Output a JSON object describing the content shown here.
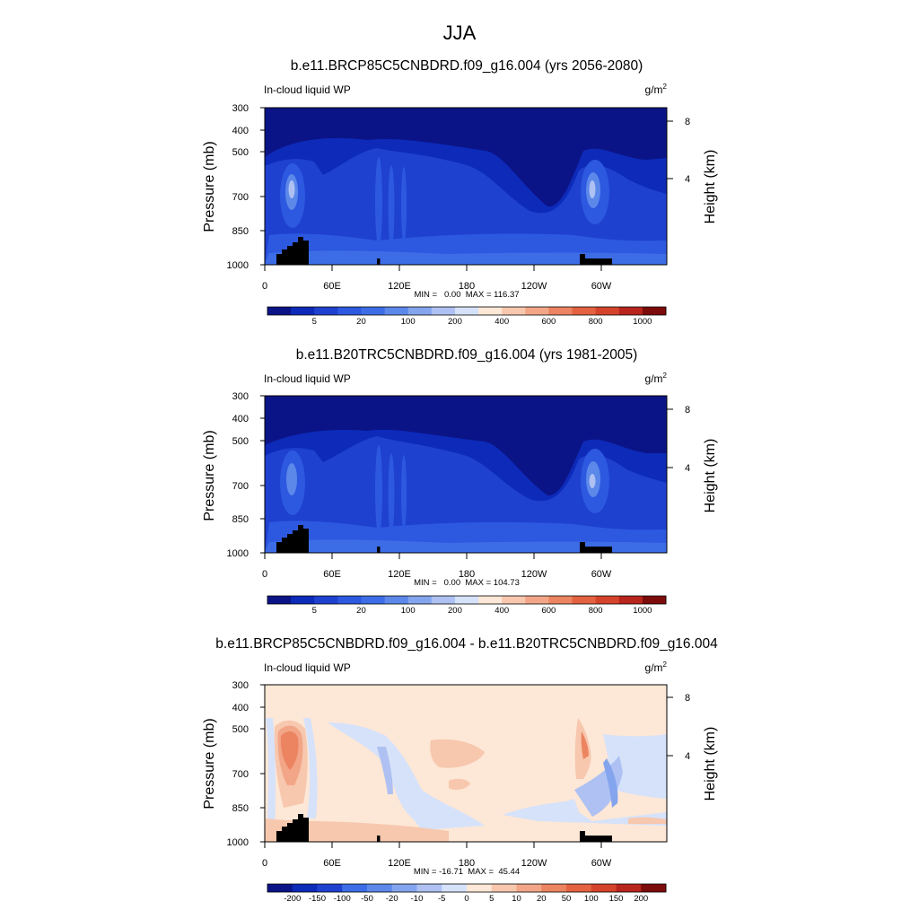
{
  "figure": {
    "title": "JJA"
  },
  "chart_data": [
    {
      "type": "heatmap",
      "title": "b.e11.BRCP85C5CNBDRD.f09_g16.004 (yrs 2056-2080)",
      "field_label": "In-cloud liquid WP",
      "units_base": "g/m",
      "units_exp": "2",
      "ylabel": "Pressure (mb)",
      "ylabel_right": "Height (km)",
      "x_ticks": [
        "0",
        "60E",
        "120E",
        "180",
        "120W",
        "60W"
      ],
      "x_tick_lons": [
        0,
        60,
        120,
        180,
        240,
        300
      ],
      "xlim": [
        0,
        360
      ],
      "y_ticks": [
        "300",
        "400",
        "500",
        "700",
        "850",
        "1000"
      ],
      "y_tick_values": [
        300,
        400,
        500,
        700,
        850,
        1000
      ],
      "ylim": [
        300,
        1000
      ],
      "right_ticks": [
        "8",
        "4"
      ],
      "right_tick_values": [
        8,
        4
      ],
      "stats": "MIN =   0.00  MAX = 116.37",
      "colorbar_labels": [
        "5",
        "20",
        "100",
        "200",
        "400",
        "600",
        "800",
        "1000"
      ],
      "colorbar_levels": [
        "2",
        "5",
        "10",
        "20",
        "50",
        "100",
        "150",
        "200",
        "300",
        "400",
        "500",
        "600",
        "700",
        "800",
        "900",
        "1000"
      ],
      "colorbar_colors": [
        "#0b1487",
        "#0d2ab9",
        "#1e41cf",
        "#2d58e0",
        "#3d6de6",
        "#5c88ea",
        "#84a5ee",
        "#aec1f2",
        "#d6e2fa",
        "#fde7d6",
        "#f7c7ae",
        "#f2a687",
        "#ec8461",
        "#e4623f",
        "#d6432b",
        "#b8251d",
        "#7c0b0b"
      ]
    },
    {
      "type": "heatmap",
      "title": "b.e11.B20TRC5CNBDRD.f09_g16.004 (yrs 1981-2005)",
      "field_label": "In-cloud liquid WP",
      "units_base": "g/m",
      "units_exp": "2",
      "ylabel": "Pressure (mb)",
      "ylabel_right": "Height (km)",
      "x_ticks": [
        "0",
        "60E",
        "120E",
        "180",
        "120W",
        "60W"
      ],
      "x_tick_lons": [
        0,
        60,
        120,
        180,
        240,
        300
      ],
      "xlim": [
        0,
        360
      ],
      "y_ticks": [
        "300",
        "400",
        "500",
        "700",
        "850",
        "1000"
      ],
      "y_tick_values": [
        300,
        400,
        500,
        700,
        850,
        1000
      ],
      "ylim": [
        300,
        1000
      ],
      "right_ticks": [
        "8",
        "4"
      ],
      "right_tick_values": [
        8,
        4
      ],
      "stats": "MIN =   0.00  MAX = 104.73",
      "colorbar_labels": [
        "5",
        "20",
        "100",
        "200",
        "400",
        "600",
        "800",
        "1000"
      ],
      "colorbar_levels": [
        "2",
        "5",
        "10",
        "20",
        "50",
        "100",
        "150",
        "200",
        "300",
        "400",
        "500",
        "600",
        "700",
        "800",
        "900",
        "1000"
      ],
      "colorbar_colors": [
        "#0b1487",
        "#0d2ab9",
        "#1e41cf",
        "#2d58e0",
        "#3d6de6",
        "#5c88ea",
        "#84a5ee",
        "#aec1f2",
        "#d6e2fa",
        "#fde7d6",
        "#f7c7ae",
        "#f2a687",
        "#ec8461",
        "#e4623f",
        "#d6432b",
        "#b8251d",
        "#7c0b0b"
      ]
    },
    {
      "type": "heatmap",
      "title": "b.e11.BRCP85C5CNBDRD.f09_g16.004 - b.e11.B20TRC5CNBDRD.f09_g16.004",
      "field_label": "In-cloud liquid WP",
      "units_base": "g/m",
      "units_exp": "2",
      "ylabel": "Pressure (mb)",
      "ylabel_right": "Height (km)",
      "x_ticks": [
        "0",
        "60E",
        "120E",
        "180",
        "120W",
        "60W"
      ],
      "x_tick_lons": [
        0,
        60,
        120,
        180,
        240,
        300
      ],
      "xlim": [
        0,
        360
      ],
      "y_ticks": [
        "300",
        "400",
        "500",
        "700",
        "850",
        "1000"
      ],
      "y_tick_values": [
        300,
        400,
        500,
        700,
        850,
        1000
      ],
      "ylim": [
        300,
        1000
      ],
      "right_ticks": [
        "8",
        "4"
      ],
      "right_tick_values": [
        8,
        4
      ],
      "stats": "MIN = -16.71  MAX =  45.44",
      "colorbar_labels": [
        "-200",
        "-150",
        "-100",
        "-50",
        "-20",
        "-10",
        "-5",
        "0",
        "5",
        "10",
        "20",
        "50",
        "100",
        "150",
        "200"
      ],
      "colorbar_levels": [
        "-200",
        "-150",
        "-100",
        "-50",
        "-20",
        "-10",
        "-5",
        "0",
        "5",
        "10",
        "20",
        "50",
        "100",
        "150",
        "200"
      ],
      "colorbar_colors": [
        "#0b1487",
        "#0d2ab9",
        "#1e41cf",
        "#3d6de6",
        "#5c88ea",
        "#84a5ee",
        "#aec1f2",
        "#d6e2fa",
        "#fde7d6",
        "#f7c7ae",
        "#f2a687",
        "#ec8461",
        "#e4623f",
        "#d6432b",
        "#b8251d",
        "#7c0b0b"
      ]
    }
  ]
}
